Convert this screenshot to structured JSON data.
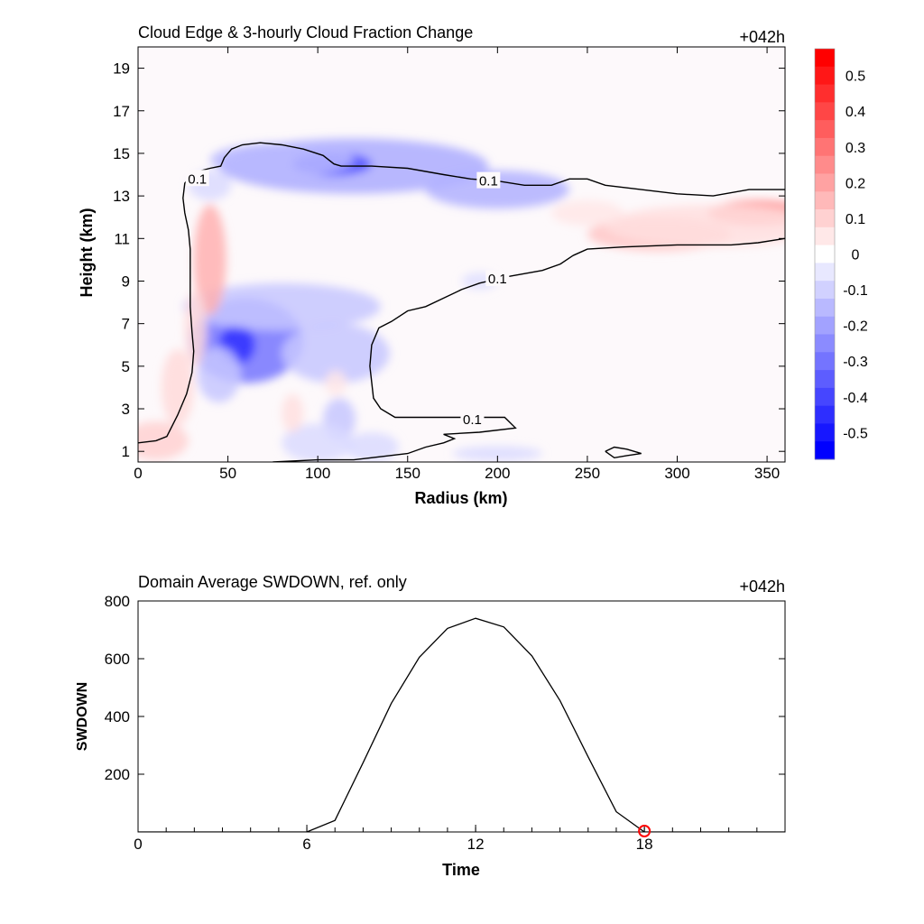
{
  "chart_data": [
    {
      "type": "contour",
      "title": "Cloud Edge & 3-hourly Cloud Fraction Change",
      "timestamp": "+042h",
      "xlabel": "Radius (km)",
      "ylabel": "Height (km)",
      "xlim": [
        0,
        360
      ],
      "ylim": [
        0.5,
        20
      ],
      "xticks": [
        "0",
        "50",
        "100",
        "150",
        "200",
        "250",
        "300",
        "350"
      ],
      "yticks": [
        "1",
        "3",
        "5",
        "7",
        "9",
        "11",
        "13",
        "15",
        "17",
        "19"
      ],
      "colorbar": {
        "labels": [
          "0.5",
          "0.4",
          "0.3",
          "0.2",
          "0.1",
          "0",
          "-0.1",
          "-0.2",
          "-0.3",
          "-0.4",
          "-0.5"
        ],
        "levels": [
          0.55,
          0.5,
          0.45,
          0.4,
          0.35,
          0.3,
          0.25,
          0.2,
          0.15,
          0.1,
          0.05,
          0,
          -0.05,
          -0.1,
          -0.15,
          -0.2,
          -0.25,
          -0.3,
          -0.35,
          -0.4,
          -0.45,
          -0.5,
          -0.55
        ],
        "colors": {
          "max": "#ff0000",
          "min": "#0000ff",
          "neutral": "#ffffff"
        }
      },
      "contour_level_label": "0.1",
      "contour_labels": [
        {
          "text": "0.1",
          "x": 33,
          "y": 13.8
        },
        {
          "text": "0.1",
          "x": 195,
          "y": 13.7
        },
        {
          "text": "0.1",
          "x": 200,
          "y": 9.1
        },
        {
          "text": "0.1",
          "x": 186,
          "y": 2.5
        }
      ],
      "blobs": [
        {
          "x": 120,
          "y": 14.4,
          "rx": 75,
          "ry": 1.3,
          "v": -0.18
        },
        {
          "x": 108,
          "y": 14.5,
          "rx": 22,
          "ry": 0.55,
          "v": -0.38
        },
        {
          "x": 80,
          "y": 14.7,
          "rx": 40,
          "ry": 0.8,
          "v": -0.15
        },
        {
          "x": 200,
          "y": 13.3,
          "rx": 40,
          "ry": 0.9,
          "v": -0.17
        },
        {
          "x": 60,
          "y": 6.2,
          "rx": 32,
          "ry": 2.0,
          "v": -0.3
        },
        {
          "x": 55,
          "y": 6.0,
          "rx": 10,
          "ry": 0.9,
          "v": -0.45
        },
        {
          "x": 80,
          "y": 7.8,
          "rx": 55,
          "ry": 1.1,
          "v": -0.12
        },
        {
          "x": 110,
          "y": 5.6,
          "rx": 30,
          "ry": 1.4,
          "v": -0.12
        },
        {
          "x": 45,
          "y": 4.6,
          "rx": 12,
          "ry": 1.3,
          "v": -0.12
        },
        {
          "x": 40,
          "y": 10.0,
          "rx": 9,
          "ry": 2.6,
          "v": 0.17
        },
        {
          "x": 32,
          "y": 6.8,
          "rx": 6,
          "ry": 1.8,
          "v": 0.08
        },
        {
          "x": 22,
          "y": 4.0,
          "rx": 9,
          "ry": 1.8,
          "v": 0.08
        },
        {
          "x": 10,
          "y": 1.5,
          "rx": 18,
          "ry": 0.9,
          "v": 0.1
        },
        {
          "x": 345,
          "y": 12.2,
          "rx": 28,
          "ry": 0.6,
          "v": 0.25
        },
        {
          "x": 290,
          "y": 11.2,
          "rx": 40,
          "ry": 0.8,
          "v": 0.12
        },
        {
          "x": 320,
          "y": 11.6,
          "rx": 60,
          "ry": 1.0,
          "v": 0.07
        },
        {
          "x": 250,
          "y": 12.2,
          "rx": 20,
          "ry": 0.6,
          "v": 0.05
        },
        {
          "x": 112,
          "y": 2.5,
          "rx": 9,
          "ry": 1.0,
          "v": -0.12
        },
        {
          "x": 100,
          "y": 1.4,
          "rx": 20,
          "ry": 0.9,
          "v": -0.08
        },
        {
          "x": 130,
          "y": 1.2,
          "rx": 15,
          "ry": 0.7,
          "v": -0.08
        },
        {
          "x": 86,
          "y": 2.8,
          "rx": 6,
          "ry": 0.9,
          "v": 0.07
        },
        {
          "x": 110,
          "y": 4.2,
          "rx": 6,
          "ry": 0.6,
          "v": 0.05
        },
        {
          "x": 200,
          "y": 0.9,
          "rx": 25,
          "ry": 0.35,
          "v": -0.08
        },
        {
          "x": 190,
          "y": 9.0,
          "rx": 10,
          "ry": 0.4,
          "v": -0.07
        },
        {
          "x": 40,
          "y": 13.5,
          "rx": 12,
          "ry": 0.7,
          "v": -0.08
        }
      ],
      "contours": [
        [
          [
            0,
            1.4
          ],
          [
            10,
            1.5
          ],
          [
            16,
            1.7
          ],
          [
            22,
            2.7
          ],
          [
            27,
            3.7
          ],
          [
            30,
            4.7
          ],
          [
            31,
            5.7
          ],
          [
            30,
            6.6
          ],
          [
            29,
            7.8
          ],
          [
            29,
            9.0
          ],
          [
            29,
            10.5
          ],
          [
            28,
            11.4
          ],
          [
            26,
            12.2
          ],
          [
            25,
            12.9
          ],
          [
            26,
            13.6
          ],
          [
            31,
            14.1
          ],
          [
            40,
            14.3
          ],
          [
            46,
            14.4
          ],
          [
            48,
            14.8
          ],
          [
            52,
            15.2
          ],
          [
            58,
            15.4
          ],
          [
            68,
            15.5
          ],
          [
            80,
            15.4
          ],
          [
            92,
            15.2
          ],
          [
            103,
            14.9
          ],
          [
            109,
            14.5
          ],
          [
            113,
            14.4
          ],
          [
            130,
            14.4
          ],
          [
            150,
            14.3
          ],
          [
            170,
            14.0
          ],
          [
            185,
            13.8
          ],
          [
            200,
            13.7
          ],
          [
            215,
            13.5
          ],
          [
            230,
            13.5
          ],
          [
            240,
            13.8
          ],
          [
            250,
            13.8
          ],
          [
            260,
            13.5
          ],
          [
            280,
            13.3
          ],
          [
            300,
            13.1
          ],
          [
            320,
            13.0
          ],
          [
            340,
            13.3
          ],
          [
            360,
            13.3
          ]
        ],
        [
          [
            75,
            0.5
          ],
          [
            100,
            0.6
          ],
          [
            120,
            0.6
          ],
          [
            150,
            0.9
          ],
          [
            160,
            1.2
          ],
          [
            170,
            1.4
          ],
          [
            176,
            1.6
          ],
          [
            170,
            1.8
          ],
          [
            190,
            1.9
          ],
          [
            210,
            2.1
          ],
          [
            204,
            2.6
          ],
          [
            185,
            2.6
          ],
          [
            160,
            2.6
          ],
          [
            143,
            2.6
          ],
          [
            135,
            3.0
          ],
          [
            131,
            3.5
          ],
          [
            129,
            5.0
          ],
          [
            130,
            6.0
          ],
          [
            134,
            6.8
          ],
          [
            141,
            7.1
          ],
          [
            150,
            7.6
          ],
          [
            160,
            7.8
          ],
          [
            170,
            8.2
          ],
          [
            180,
            8.6
          ],
          [
            190,
            8.9
          ],
          [
            205,
            9.2
          ],
          [
            225,
            9.5
          ],
          [
            235,
            9.8
          ],
          [
            242,
            10.2
          ],
          [
            250,
            10.5
          ],
          [
            270,
            10.6
          ],
          [
            300,
            10.7
          ],
          [
            330,
            10.7
          ],
          [
            345,
            10.8
          ],
          [
            360,
            11.0
          ]
        ],
        [
          [
            260,
            1.0
          ],
          [
            265,
            1.2
          ],
          [
            272,
            1.1
          ],
          [
            280,
            0.9
          ],
          [
            272,
            0.8
          ],
          [
            265,
            0.7
          ],
          [
            260,
            1.0
          ]
        ]
      ]
    },
    {
      "type": "line",
      "title": "Domain Average SWDOWN, ref. only",
      "timestamp": "+042h",
      "xlabel": "Time",
      "ylabel": "SWDOWN",
      "xlim": [
        0,
        23
      ],
      "ylim": [
        0,
        800
      ],
      "xticks": [
        "0",
        "6",
        "12",
        "18"
      ],
      "yticks": [
        "200",
        "400",
        "600",
        "800"
      ],
      "x": [
        0,
        1,
        2,
        3,
        4,
        5,
        6,
        7,
        8,
        9,
        10,
        11,
        12,
        13,
        14,
        15,
        16,
        17,
        18,
        19,
        20,
        21,
        22,
        23
      ],
      "y": [
        0,
        0,
        0,
        0,
        0,
        0,
        0,
        40,
        240,
        445,
        605,
        705,
        740,
        710,
        610,
        455,
        260,
        70,
        0,
        0,
        0,
        0,
        0,
        0
      ],
      "marker": {
        "x": 18,
        "y": 0,
        "color": "#ff0000"
      }
    }
  ]
}
